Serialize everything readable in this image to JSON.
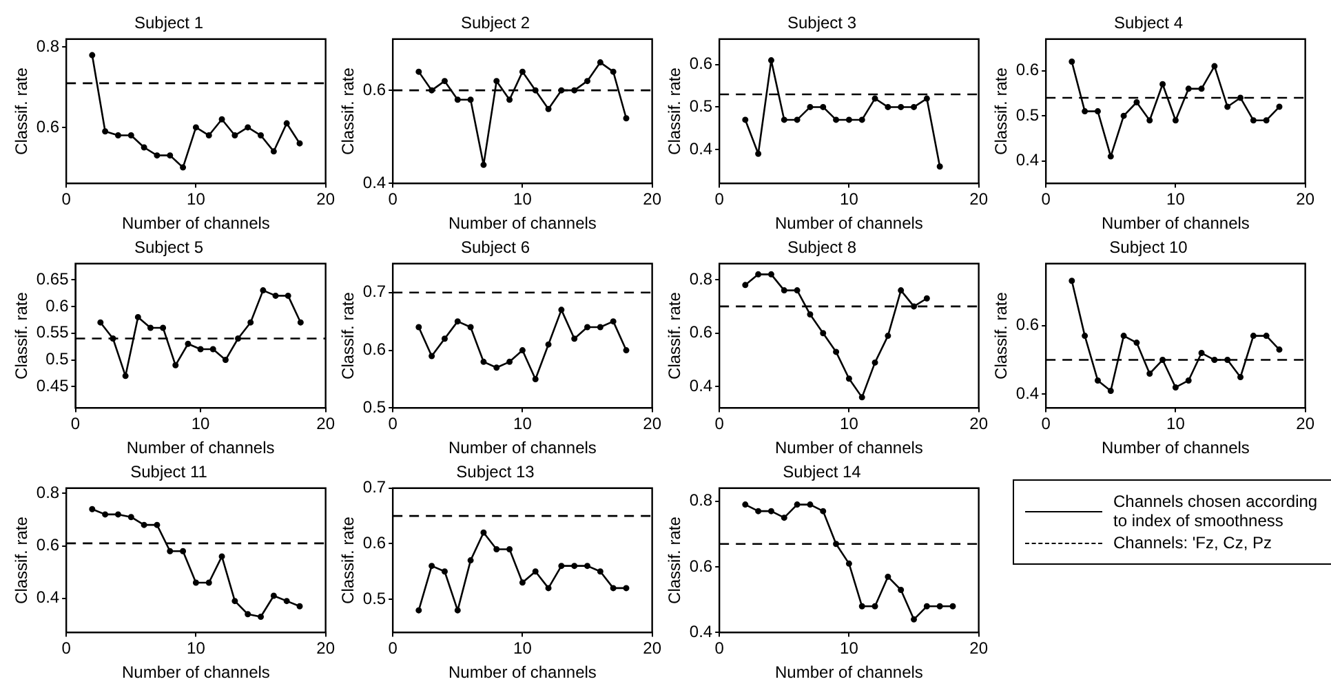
{
  "chart_data": [
    {
      "type": "line",
      "title": "Subject 1",
      "xlabel": "Number of channels",
      "ylabel": "Classif. rate",
      "xlim": [
        0,
        20
      ],
      "xticks": [
        0,
        10,
        20
      ],
      "ylim": [
        0.46,
        0.82
      ],
      "yticks": [
        0.6,
        0.8
      ],
      "series": [
        {
          "color": "#000000",
          "marker": "circle",
          "x": [
            2,
            3,
            4,
            5,
            6,
            7,
            8,
            9,
            10,
            11,
            12,
            13,
            14,
            15,
            16,
            17,
            18
          ],
          "values": [
            0.78,
            0.59,
            0.58,
            0.58,
            0.55,
            0.53,
            0.53,
            0.5,
            0.6,
            0.58,
            0.62,
            0.58,
            0.6,
            0.58,
            0.54,
            0.61,
            0.56
          ]
        },
        {
          "color": "#000000",
          "marker": "none",
          "line_style": "dashed",
          "x": [
            0,
            20
          ],
          "values": [
            0.71,
            0.71
          ]
        }
      ]
    },
    {
      "type": "line",
      "title": "Subject 2",
      "xlabel": "Number of channels",
      "ylabel": "Classif. rate",
      "xlim": [
        0,
        20
      ],
      "xticks": [
        0,
        10,
        20
      ],
      "ylim": [
        0.4,
        0.71
      ],
      "yticks": [
        0.4,
        0.6
      ],
      "series": [
        {
          "color": "#000000",
          "marker": "circle",
          "x": [
            2,
            3,
            4,
            5,
            6,
            7,
            8,
            9,
            10,
            11,
            12,
            13,
            14,
            15,
            16,
            17,
            18
          ],
          "values": [
            0.64,
            0.6,
            0.62,
            0.58,
            0.58,
            0.44,
            0.62,
            0.58,
            0.64,
            0.6,
            0.56,
            0.6,
            0.6,
            0.62,
            0.66,
            0.64,
            0.54
          ]
        },
        {
          "color": "#000000",
          "marker": "none",
          "line_style": "dashed",
          "x": [
            0,
            20
          ],
          "values": [
            0.6,
            0.6
          ]
        }
      ]
    },
    {
      "type": "line",
      "title": "Subject 3",
      "xlabel": "Number of channels",
      "ylabel": "Classif. rate",
      "xlim": [
        0,
        20
      ],
      "xticks": [
        0,
        10,
        20
      ],
      "ylim": [
        0.32,
        0.66
      ],
      "yticks": [
        0.4,
        0.5,
        0.6
      ],
      "series": [
        {
          "color": "#000000",
          "marker": "circle",
          "x": [
            2,
            3,
            4,
            5,
            6,
            7,
            8,
            9,
            10,
            11,
            12,
            13,
            14,
            15,
            16,
            17
          ],
          "values": [
            0.47,
            0.39,
            0.61,
            0.47,
            0.47,
            0.5,
            0.5,
            0.47,
            0.47,
            0.47,
            0.52,
            0.5,
            0.5,
            0.5,
            0.52,
            0.36
          ]
        },
        {
          "color": "#000000",
          "marker": "none",
          "line_style": "dashed",
          "x": [
            0,
            20
          ],
          "values": [
            0.53,
            0.53
          ]
        }
      ]
    },
    {
      "type": "line",
      "title": "Subject 4",
      "xlabel": "Number of channels",
      "ylabel": "Classif. rate",
      "xlim": [
        0,
        20
      ],
      "xticks": [
        0,
        10,
        20
      ],
      "ylim": [
        0.35,
        0.67
      ],
      "yticks": [
        0.4,
        0.5,
        0.6
      ],
      "series": [
        {
          "color": "#000000",
          "marker": "circle",
          "x": [
            2,
            3,
            4,
            5,
            6,
            7,
            8,
            9,
            10,
            11,
            12,
            13,
            14,
            15,
            16,
            17,
            18
          ],
          "values": [
            0.62,
            0.51,
            0.51,
            0.41,
            0.5,
            0.53,
            0.49,
            0.57,
            0.49,
            0.56,
            0.56,
            0.61,
            0.52,
            0.54,
            0.49,
            0.49,
            0.52
          ]
        },
        {
          "color": "#000000",
          "marker": "none",
          "line_style": "dashed",
          "x": [
            0,
            20
          ],
          "values": [
            0.54,
            0.54
          ]
        }
      ]
    },
    {
      "type": "line",
      "title": "Subject 5",
      "xlabel": "Number of channels",
      "ylabel": "Classif. rate",
      "xlim": [
        0,
        20
      ],
      "xticks": [
        0,
        10,
        20
      ],
      "ylim": [
        0.41,
        0.68
      ],
      "yticks": [
        0.45,
        0.5,
        0.55,
        0.6,
        0.65
      ],
      "series": [
        {
          "color": "#000000",
          "marker": "circle",
          "x": [
            2,
            3,
            4,
            5,
            6,
            7,
            8,
            9,
            10,
            11,
            12,
            13,
            14,
            15,
            16,
            17,
            18
          ],
          "values": [
            0.57,
            0.54,
            0.47,
            0.58,
            0.56,
            0.56,
            0.49,
            0.53,
            0.52,
            0.52,
            0.5,
            0.54,
            0.57,
            0.63,
            0.62,
            0.62,
            0.57
          ]
        },
        {
          "color": "#000000",
          "marker": "none",
          "line_style": "dashed",
          "x": [
            0,
            20
          ],
          "values": [
            0.54,
            0.54
          ]
        }
      ]
    },
    {
      "type": "line",
      "title": "Subject 6",
      "xlabel": "Number of channels",
      "ylabel": "Classif. rate",
      "xlim": [
        0,
        20
      ],
      "xticks": [
        0,
        10,
        20
      ],
      "ylim": [
        0.5,
        0.75
      ],
      "yticks": [
        0.5,
        0.6,
        0.7
      ],
      "series": [
        {
          "color": "#000000",
          "marker": "circle",
          "x": [
            2,
            3,
            4,
            5,
            6,
            7,
            8,
            9,
            10,
            11,
            12,
            13,
            14,
            15,
            16,
            17,
            18
          ],
          "values": [
            0.64,
            0.59,
            0.62,
            0.65,
            0.64,
            0.58,
            0.57,
            0.58,
            0.6,
            0.55,
            0.61,
            0.67,
            0.62,
            0.64,
            0.64,
            0.65,
            0.6
          ]
        },
        {
          "color": "#000000",
          "marker": "none",
          "line_style": "dashed",
          "x": [
            0,
            20
          ],
          "values": [
            0.7,
            0.7
          ]
        }
      ]
    },
    {
      "type": "line",
      "title": "Subject 8",
      "xlabel": "Number of channels",
      "ylabel": "Classif. rate",
      "xlim": [
        0,
        20
      ],
      "xticks": [
        0,
        10,
        20
      ],
      "ylim": [
        0.32,
        0.86
      ],
      "yticks": [
        0.4,
        0.6,
        0.8
      ],
      "series": [
        {
          "color": "#000000",
          "marker": "circle",
          "x": [
            2,
            3,
            4,
            5,
            6,
            7,
            8,
            9,
            10,
            11,
            12,
            13,
            14,
            15,
            16
          ],
          "values": [
            0.78,
            0.82,
            0.82,
            0.76,
            0.76,
            0.67,
            0.6,
            0.53,
            0.43,
            0.36,
            0.49,
            0.59,
            0.76,
            0.7,
            0.73
          ]
        },
        {
          "color": "#000000",
          "marker": "none",
          "line_style": "dashed",
          "x": [
            0,
            20
          ],
          "values": [
            0.7,
            0.7
          ]
        }
      ]
    },
    {
      "type": "line",
      "title": "Subject 10",
      "xlabel": "Number of channels",
      "ylabel": "Classif. rate",
      "xlim": [
        0,
        20
      ],
      "xticks": [
        0,
        10,
        20
      ],
      "ylim": [
        0.36,
        0.78
      ],
      "yticks": [
        0.4,
        0.6
      ],
      "series": [
        {
          "color": "#000000",
          "marker": "circle",
          "x": [
            2,
            3,
            4,
            5,
            6,
            7,
            8,
            9,
            10,
            11,
            12,
            13,
            14,
            15,
            16,
            17,
            18
          ],
          "values": [
            0.73,
            0.57,
            0.44,
            0.41,
            0.57,
            0.55,
            0.46,
            0.5,
            0.42,
            0.44,
            0.52,
            0.5,
            0.5,
            0.45,
            0.57,
            0.57,
            0.53
          ]
        },
        {
          "color": "#000000",
          "marker": "none",
          "line_style": "dashed",
          "x": [
            0,
            20
          ],
          "values": [
            0.5,
            0.5
          ]
        }
      ]
    },
    {
      "type": "line",
      "title": "Subject 11",
      "xlabel": "Number of channels",
      "ylabel": "Classif. rate",
      "xlim": [
        0,
        20
      ],
      "xticks": [
        0,
        10,
        20
      ],
      "ylim": [
        0.27,
        0.82
      ],
      "yticks": [
        0.4,
        0.6,
        0.8
      ],
      "series": [
        {
          "color": "#000000",
          "marker": "circle",
          "x": [
            2,
            3,
            4,
            5,
            6,
            7,
            8,
            9,
            10,
            11,
            12,
            13,
            14,
            15,
            16,
            17,
            18
          ],
          "values": [
            0.74,
            0.72,
            0.72,
            0.71,
            0.68,
            0.68,
            0.58,
            0.58,
            0.46,
            0.46,
            0.56,
            0.39,
            0.34,
            0.33,
            0.41,
            0.39,
            0.37
          ]
        },
        {
          "color": "#000000",
          "marker": "none",
          "line_style": "dashed",
          "x": [
            0,
            20
          ],
          "values": [
            0.61,
            0.61
          ]
        }
      ]
    },
    {
      "type": "line",
      "title": "Subject 13",
      "xlabel": "Number of channels",
      "ylabel": "Classif. rate",
      "xlim": [
        0,
        20
      ],
      "xticks": [
        0,
        10,
        20
      ],
      "ylim": [
        0.44,
        0.7
      ],
      "yticks": [
        0.5,
        0.6,
        0.7
      ],
      "series": [
        {
          "color": "#000000",
          "marker": "circle",
          "x": [
            2,
            3,
            4,
            5,
            6,
            7,
            8,
            9,
            10,
            11,
            12,
            13,
            14,
            15,
            16,
            17,
            18
          ],
          "values": [
            0.48,
            0.56,
            0.55,
            0.48,
            0.57,
            0.62,
            0.59,
            0.59,
            0.53,
            0.55,
            0.52,
            0.56,
            0.56,
            0.56,
            0.55,
            0.52,
            0.52
          ]
        },
        {
          "color": "#000000",
          "marker": "none",
          "line_style": "dashed",
          "x": [
            0,
            20
          ],
          "values": [
            0.65,
            0.65
          ]
        }
      ]
    },
    {
      "type": "line",
      "title": "Subject 14",
      "xlabel": "Number of channels",
      "ylabel": "Classif. rate",
      "xlim": [
        0,
        20
      ],
      "xticks": [
        0,
        10,
        20
      ],
      "ylim": [
        0.4,
        0.84
      ],
      "yticks": [
        0.4,
        0.6,
        0.8
      ],
      "legend": "right",
      "series": [
        {
          "name": "Channels chosen according to index of smoothness",
          "color": "#000000",
          "marker": "circle",
          "x": [
            2,
            3,
            4,
            5,
            6,
            7,
            8,
            9,
            10,
            11,
            12,
            13,
            14,
            15,
            16,
            17,
            18
          ],
          "values": [
            0.79,
            0.77,
            0.77,
            0.75,
            0.79,
            0.79,
            0.77,
            0.67,
            0.61,
            0.48,
            0.48,
            0.57,
            0.53,
            0.44,
            0.48,
            0.48,
            0.48
          ]
        },
        {
          "name": "Channels: 'Fz, Cz, Pz",
          "color": "#000000",
          "marker": "none",
          "line_style": "dashed",
          "x": [
            0,
            20
          ],
          "values": [
            0.67,
            0.67
          ]
        }
      ]
    }
  ]
}
